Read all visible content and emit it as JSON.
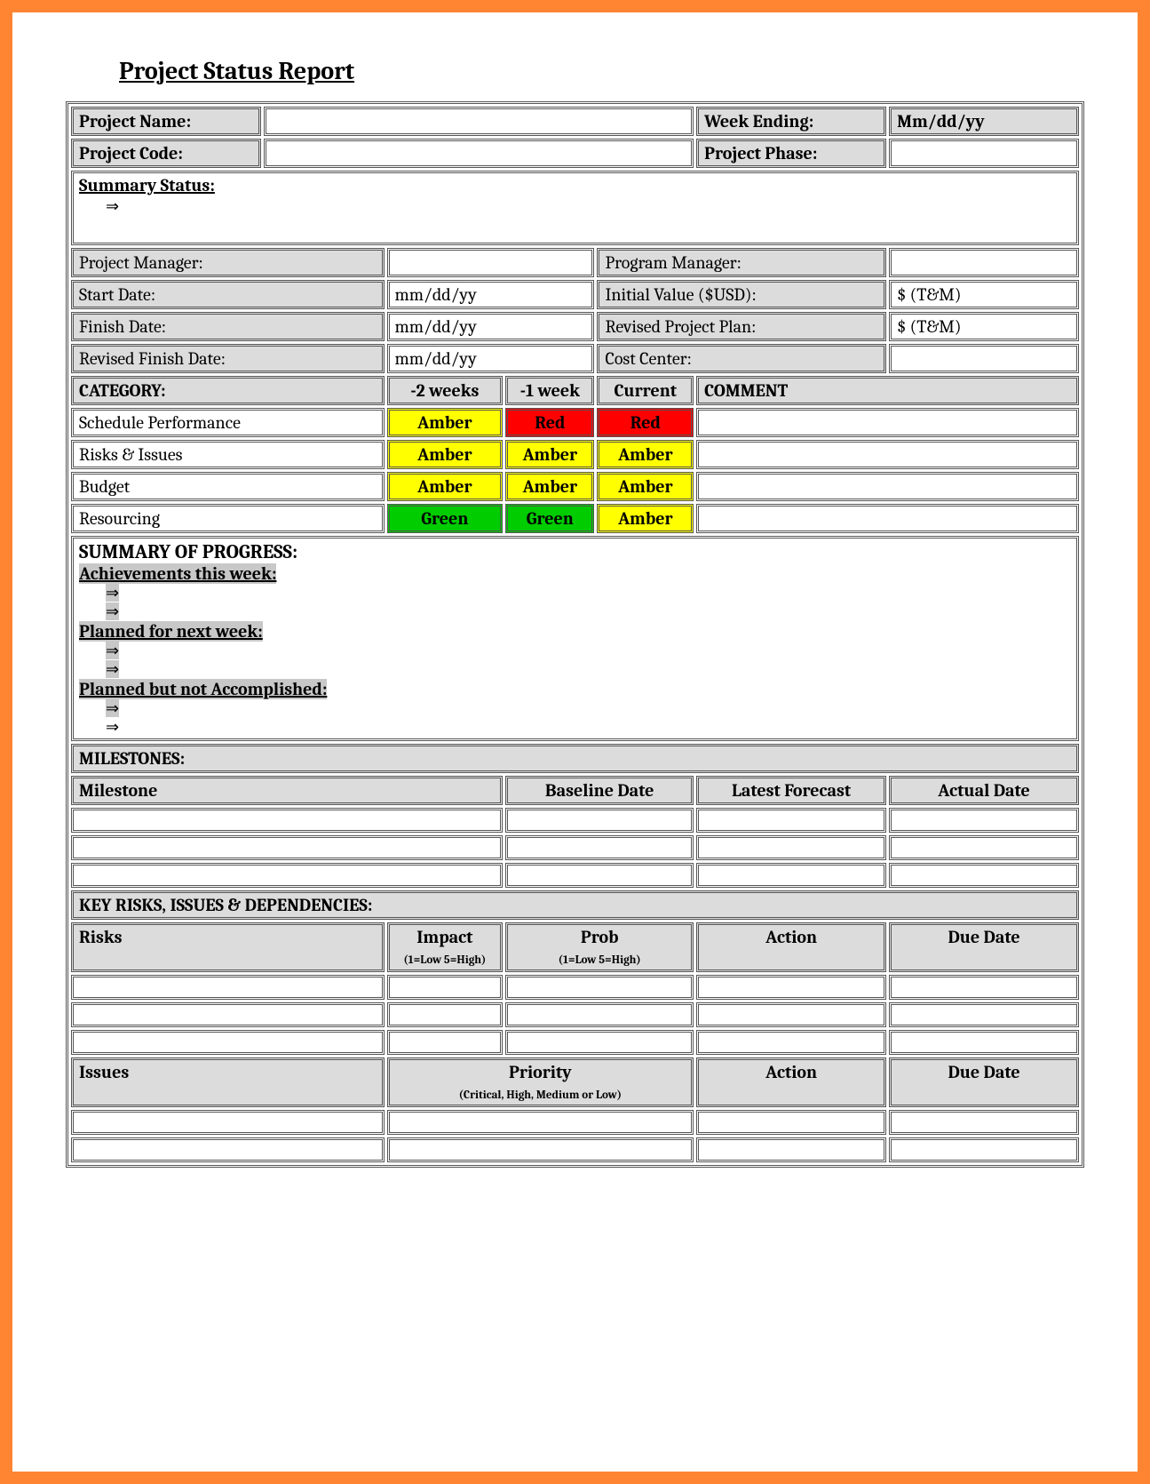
{
  "title": "Project Status Report",
  "header": {
    "project_name_label": "Project Name:",
    "project_name_value": "",
    "week_ending_label": "Week Ending:",
    "week_ending_value": "Mm/dd/yy",
    "project_code_label": "Project Code:",
    "project_code_value": "",
    "project_phase_label": "Project Phase:",
    "project_phase_value": ""
  },
  "summary_status_label": "Summary Status:",
  "managers": {
    "pm_label": "Project Manager:",
    "pm_value": "",
    "prog_label": "Program Manager:",
    "prog_value": "",
    "start_label": "Start Date:",
    "start_value": "mm/dd/yy",
    "initial_label": "Initial Value ($USD):",
    "initial_value": "$ (T&M)",
    "finish_label": "Finish Date:",
    "finish_value": "mm/dd/yy",
    "revised_plan_label": "Revised Project Plan:",
    "revised_plan_value": "$ (T&M)",
    "revised_finish_label": "Revised Finish Date:",
    "revised_finish_value": "mm/dd/yy",
    "cost_center_label": "Cost Center:",
    "cost_center_value": ""
  },
  "category_table": {
    "columns": [
      "CATEGORY:",
      "-2 weeks",
      "-1 week",
      "Current",
      "COMMENT"
    ],
    "rows": [
      {
        "label": "Schedule Performance",
        "m2": "Amber",
        "m1": "Red",
        "cur": "Red",
        "comment": ""
      },
      {
        "label": "Risks & Issues",
        "m2": "Amber",
        "m1": "Amber",
        "cur": "Amber",
        "comment": ""
      },
      {
        "label": "Budget",
        "m2": "Amber",
        "m1": "Amber",
        "cur": "Amber",
        "comment": ""
      },
      {
        "label": "Resourcing",
        "m2": "Green",
        "m1": "Green",
        "cur": "Amber",
        "comment": ""
      }
    ],
    "colors": {
      "Amber": "#ffff00",
      "Red": "#ff0000",
      "Green": "#00cc00"
    }
  },
  "progress": {
    "heading": "SUMMARY OF PROGRESS:",
    "ach_label": "Achievements this week:",
    "planned_next_label": "Planned for next week:",
    "planned_not_label": "Planned but not Accomplished:"
  },
  "milestones": {
    "heading": "MILESTONES:",
    "columns": [
      "Milestone",
      "Baseline Date",
      "Latest Forecast",
      "Actual Date"
    ]
  },
  "risks_section": {
    "heading": "KEY RISKS, ISSUES & DEPENDENCIES:",
    "risks_columns": {
      "c1": "Risks",
      "c2": "Impact",
      "c2_sub": "(1=Low 5=High)",
      "c3": "Prob",
      "c3_sub": "(1=Low 5=High)",
      "c4": "Action",
      "c5": "Due Date"
    },
    "issues_columns": {
      "c1": "Issues",
      "c2": "Priority",
      "c2_sub": "(Critical, High, Medium or Low)",
      "c3": "Action",
      "c4": "Due Date"
    }
  },
  "style": {
    "page_border_color": "#ff8533",
    "header_bg": "#dcdcdc",
    "table_border": "#555555",
    "highlight_bg": "#c8c8c8",
    "title_fontsize": 28,
    "body_fontsize": 20
  }
}
